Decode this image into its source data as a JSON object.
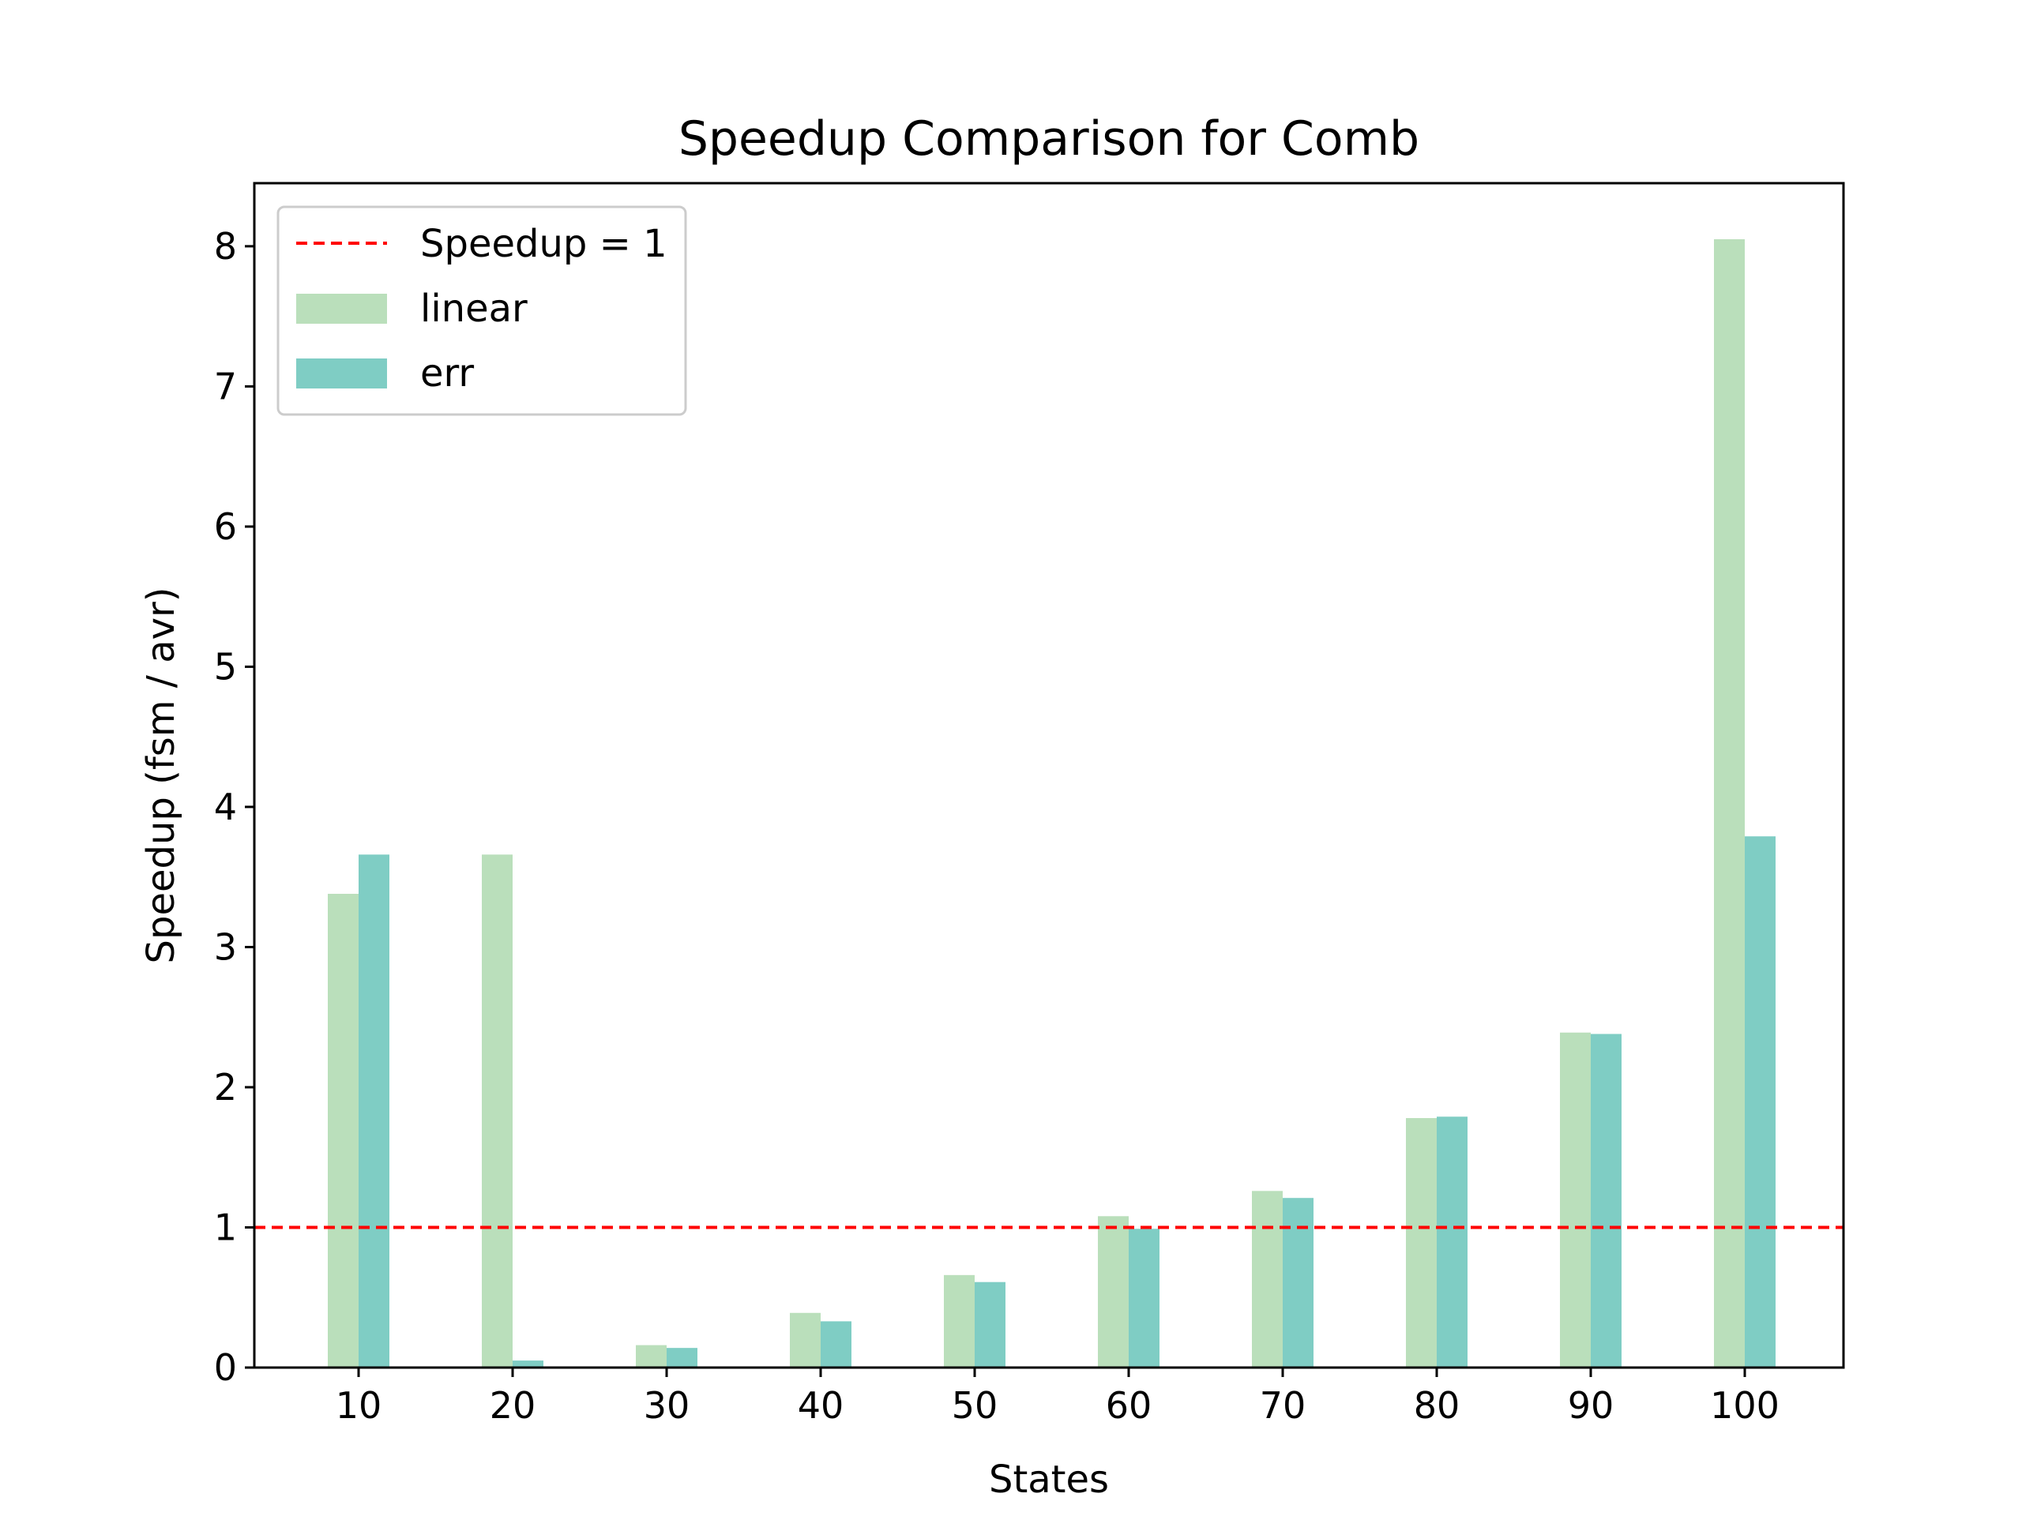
{
  "chart_data": {
    "type": "bar",
    "title": "Speedup Comparison for Comb",
    "xlabel": "States",
    "ylabel": "Speedup (fsm / avr)",
    "categories": [
      "10",
      "20",
      "30",
      "40",
      "50",
      "60",
      "70",
      "80",
      "90",
      "100"
    ],
    "series": [
      {
        "name": "linear",
        "color": "#badfbb",
        "values": [
          3.38,
          3.66,
          0.16,
          0.39,
          0.66,
          1.08,
          1.26,
          1.78,
          2.39,
          8.05
        ]
      },
      {
        "name": "err",
        "color": "#7fcdc4",
        "values": [
          3.66,
          0.05,
          0.14,
          0.33,
          0.61,
          0.99,
          1.21,
          1.79,
          2.38,
          3.79
        ]
      }
    ],
    "reference_line": {
      "name": "Speedup = 1",
      "value": 1,
      "color": "#ff0000",
      "style": "dashed"
    },
    "ylim": [
      0,
      8.45
    ],
    "yticks": [
      0,
      1,
      2,
      3,
      4,
      5,
      6,
      7,
      8
    ],
    "grid": false,
    "legend": {
      "position": "top-left"
    }
  }
}
